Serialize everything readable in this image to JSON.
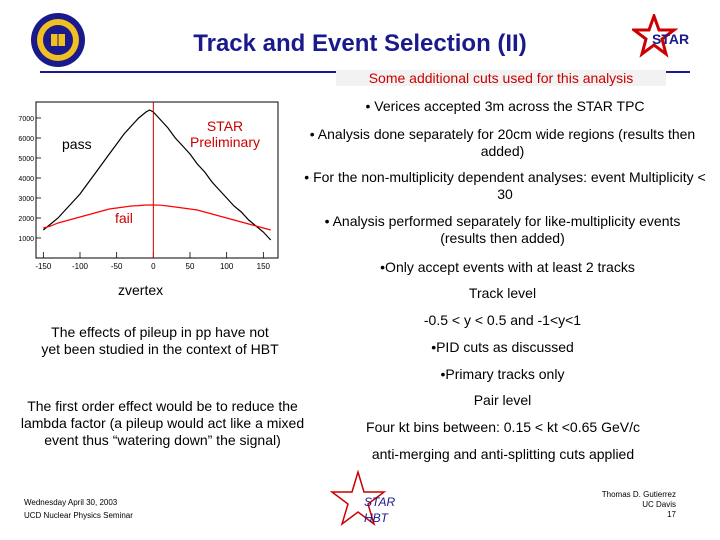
{
  "slide": {
    "title": "Track and Event Selection (II)",
    "subheading": "Some additional cuts used for this analysis",
    "bullets": [
      "• Verices accepted 3m across the STAR TPC",
      "• Analysis done separately for 20cm wide regions (results then added)",
      "• For the non-multiplicity dependent analyses: event Multiplicity < 30",
      "• Analysis performed separately for like-multiplicity events (results then added)",
      "•Only accept events with at least 2 tracks"
    ],
    "track_level": {
      "heading": "Track level",
      "items": [
        "-0.5 < y < 0.5 and -1<y<1",
        "•PID cuts as discussed",
        "•Primary tracks only"
      ]
    },
    "pair_level": {
      "heading": "Pair level",
      "items": [
        "Four kt bins between: 0.15 < kt <0.65 GeV/c",
        "anti-merging and anti-splitting cuts applied"
      ]
    },
    "notes": [
      "The effects of pileup in pp have not yet been studied in the context of HBT",
      "The first order effect would be to reduce the lambda factor (a pileup would act like a mixed event thus “watering down” the signal)"
    ],
    "footer_left": [
      "Wednesday April 30, 2003",
      "UCD Nuclear Physics Seminar"
    ],
    "footer_right": [
      "Thomas D. Gutierrez",
      "UC Davis",
      "17"
    ],
    "logo_star_text": "STAR",
    "watermark_lines": [
      "STAR",
      "HBT"
    ]
  },
  "chart_data": {
    "type": "line",
    "xlabel": "zvertex",
    "x_ticks": [
      "-150",
      "-100",
      "-50",
      "0",
      "50",
      "100",
      "150"
    ],
    "y_ticks": [
      "1000",
      "2000",
      "3000",
      "4000",
      "5000",
      "6000",
      "7000"
    ],
    "xlim": [
      -160,
      170
    ],
    "ylim": [
      0,
      7800
    ],
    "annotations": [
      "pass",
      "fail",
      "STAR Preliminary"
    ],
    "colors": {
      "pass": "#000000",
      "fail": "#ff0000",
      "cut_line": "#cc0000"
    },
    "series": [
      {
        "name": "pass",
        "x": [
          -150,
          -140,
          -130,
          -120,
          -110,
          -100,
          -90,
          -80,
          -70,
          -60,
          -50,
          -40,
          -30,
          -20,
          -10,
          -5,
          0,
          5,
          10,
          20,
          30,
          40,
          50,
          60,
          70,
          80,
          90,
          100,
          110,
          120,
          130,
          140,
          150,
          160
        ],
        "y": [
          1400,
          1700,
          2000,
          2400,
          2800,
          3200,
          3700,
          4200,
          4700,
          5200,
          5700,
          6200,
          6600,
          7000,
          7300,
          7400,
          7300,
          7100,
          6900,
          6500,
          6000,
          5600,
          5200,
          4700,
          4300,
          3800,
          3400,
          3000,
          2600,
          2300,
          1900,
          1600,
          1300,
          900
        ]
      },
      {
        "name": "fail",
        "x": [
          -150,
          -140,
          -130,
          -120,
          -110,
          -100,
          -90,
          -80,
          -70,
          -60,
          -50,
          -40,
          -30,
          -20,
          -10,
          0,
          10,
          20,
          30,
          40,
          50,
          60,
          70,
          80,
          90,
          100,
          110,
          120,
          130,
          140,
          150,
          160
        ],
        "y": [
          1500,
          1600,
          1750,
          1850,
          1950,
          2050,
          2150,
          2250,
          2350,
          2450,
          2500,
          2550,
          2600,
          2620,
          2650,
          2650,
          2640,
          2600,
          2550,
          2500,
          2450,
          2400,
          2300,
          2200,
          2100,
          2000,
          1900,
          1800,
          1700,
          1600,
          1500,
          1400
        ]
      }
    ],
    "cut_x": 0
  }
}
